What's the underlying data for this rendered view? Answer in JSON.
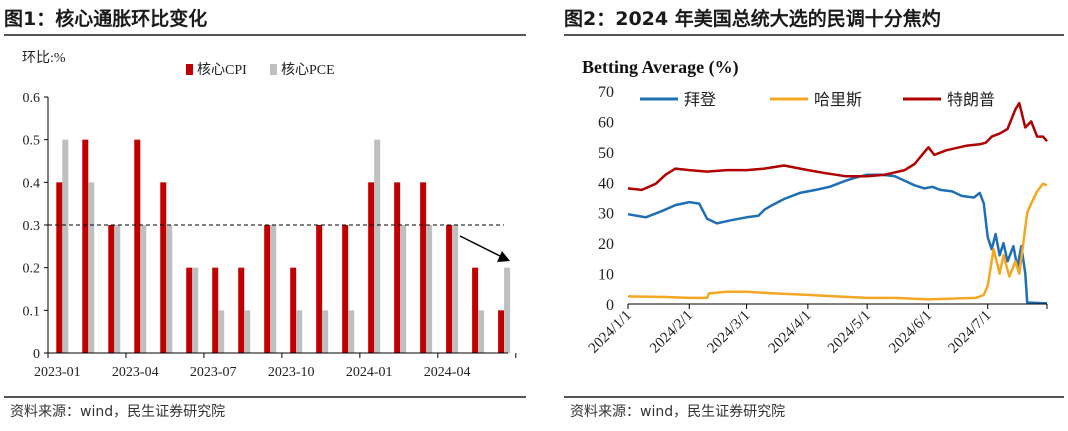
{
  "figure1": {
    "title": "图1：核心通胀环比变化",
    "source": "资料来源：wind，民生证券研究院",
    "chart_data": {
      "type": "bar",
      "ylabel": "环比:%",
      "ylim": [
        0,
        0.6
      ],
      "yticks": [
        0,
        0.1,
        0.2,
        0.3,
        0.4,
        0.5,
        0.6
      ],
      "xtick_labels": [
        "2023-01",
        "2023-04",
        "2023-07",
        "2023-10",
        "2024-01",
        "2024-04"
      ],
      "categories": [
        "2023-01",
        "2023-02",
        "2023-03",
        "2023-04",
        "2023-05",
        "2023-06",
        "2023-07",
        "2023-08",
        "2023-09",
        "2023-10",
        "2023-11",
        "2023-12",
        "2024-01",
        "2024-02",
        "2024-03",
        "2024-04",
        "2024-05",
        "2024-06"
      ],
      "series": [
        {
          "name": "核心CPI",
          "color": "#c00000",
          "values": [
            0.4,
            0.5,
            0.3,
            0.5,
            0.4,
            0.2,
            0.2,
            0.2,
            0.3,
            0.2,
            0.3,
            0.3,
            0.4,
            0.4,
            0.4,
            0.3,
            0.2,
            0.1
          ]
        },
        {
          "name": "核心PCE",
          "color": "#bfbfbf",
          "values": [
            0.5,
            0.4,
            0.3,
            0.3,
            0.3,
            0.2,
            0.1,
            0.1,
            0.3,
            0.1,
            0.1,
            0.1,
            0.5,
            0.3,
            0.3,
            0.3,
            0.1,
            0.2
          ]
        }
      ],
      "reference_line": 0.3,
      "legend": "top-center"
    }
  },
  "figure2": {
    "title": "图2：2024 年美国总统大选的民调十分焦灼",
    "source": "资料来源：wind，民生证券研究院",
    "chart_data": {
      "type": "line",
      "title": "Betting Average (%)",
      "ylim": [
        0,
        70
      ],
      "yticks": [
        0,
        10,
        20,
        30,
        40,
        50,
        60,
        70
      ],
      "x_domain": [
        "2024-01-01",
        "2024-07-31"
      ],
      "xtick_labels": [
        "2024/1/1",
        "2024/2/1",
        "2024/3/1",
        "2024/4/1",
        "2024/5/1",
        "2024/6/1",
        "2024/7/1"
      ],
      "x_ticks": [
        "2024-01-01",
        "2024-02-01",
        "2024-03-01",
        "2024-04-01",
        "2024-05-01",
        "2024-06-01",
        "2024-07-01"
      ],
      "legend": "top",
      "series": [
        {
          "name": "拜登",
          "color": "#1f6fb5",
          "points": [
            [
              "2024-01-01",
              29.5
            ],
            [
              "2024-01-10",
              28.5
            ],
            [
              "2024-01-18",
              30.5
            ],
            [
              "2024-01-25",
              32.5
            ],
            [
              "2024-02-01",
              33.5
            ],
            [
              "2024-02-06",
              33.0
            ],
            [
              "2024-02-10",
              28.0
            ],
            [
              "2024-02-15",
              26.5
            ],
            [
              "2024-02-22",
              27.5
            ],
            [
              "2024-03-01",
              28.5
            ],
            [
              "2024-03-07",
              29.0
            ],
            [
              "2024-03-10",
              31.0
            ],
            [
              "2024-03-14",
              32.5
            ],
            [
              "2024-03-20",
              34.5
            ],
            [
              "2024-03-28",
              36.5
            ],
            [
              "2024-04-05",
              37.5
            ],
            [
              "2024-04-12",
              38.5
            ],
            [
              "2024-04-20",
              40.5
            ],
            [
              "2024-04-25",
              41.5
            ],
            [
              "2024-05-01",
              42.5
            ],
            [
              "2024-05-08",
              42.5
            ],
            [
              "2024-05-15",
              42.0
            ],
            [
              "2024-05-20",
              40.5
            ],
            [
              "2024-05-25",
              39.0
            ],
            [
              "2024-05-30",
              38.0
            ],
            [
              "2024-06-03",
              38.5
            ],
            [
              "2024-06-07",
              37.5
            ],
            [
              "2024-06-13",
              37.0
            ],
            [
              "2024-06-18",
              35.5
            ],
            [
              "2024-06-24",
              35.0
            ],
            [
              "2024-06-27",
              36.5
            ],
            [
              "2024-06-29",
              33.0
            ],
            [
              "2024-07-01",
              22.0
            ],
            [
              "2024-07-03",
              18.0
            ],
            [
              "2024-07-05",
              23.0
            ],
            [
              "2024-07-07",
              16.0
            ],
            [
              "2024-07-09",
              20.0
            ],
            [
              "2024-07-11",
              14.0
            ],
            [
              "2024-07-14",
              19.0
            ],
            [
              "2024-07-16",
              12.0
            ],
            [
              "2024-07-18",
              19.0
            ],
            [
              "2024-07-20",
              10.0
            ],
            [
              "2024-07-21",
              0.5
            ],
            [
              "2024-07-31",
              0.2
            ]
          ]
        },
        {
          "name": "哈里斯",
          "color": "#f5a623",
          "points": [
            [
              "2024-01-01",
              2.5
            ],
            [
              "2024-01-20",
              2.3
            ],
            [
              "2024-02-01",
              2.0
            ],
            [
              "2024-02-10",
              2.0
            ],
            [
              "2024-02-11",
              3.5
            ],
            [
              "2024-02-20",
              4.0
            ],
            [
              "2024-03-01",
              4.0
            ],
            [
              "2024-03-15",
              3.5
            ],
            [
              "2024-04-01",
              3.0
            ],
            [
              "2024-04-15",
              2.5
            ],
            [
              "2024-05-01",
              2.0
            ],
            [
              "2024-05-15",
              2.0
            ],
            [
              "2024-06-01",
              1.5
            ],
            [
              "2024-06-25",
              2.0
            ],
            [
              "2024-06-29",
              3.0
            ],
            [
              "2024-07-01",
              6.0
            ],
            [
              "2024-07-04",
              18.0
            ],
            [
              "2024-07-07",
              10.0
            ],
            [
              "2024-07-09",
              16.0
            ],
            [
              "2024-07-12",
              9.0
            ],
            [
              "2024-07-15",
              14.0
            ],
            [
              "2024-07-17",
              10.0
            ],
            [
              "2024-07-19",
              20.0
            ],
            [
              "2024-07-21",
              30.0
            ],
            [
              "2024-07-23",
              33.0
            ],
            [
              "2024-07-26",
              37.0
            ],
            [
              "2024-07-29",
              39.5
            ],
            [
              "2024-07-31",
              39.0
            ]
          ]
        },
        {
          "name": "特朗普",
          "color": "#b00000",
          "points": [
            [
              "2024-01-01",
              38.0
            ],
            [
              "2024-01-08",
              37.5
            ],
            [
              "2024-01-15",
              39.5
            ],
            [
              "2024-01-20",
              42.5
            ],
            [
              "2024-01-25",
              44.5
            ],
            [
              "2024-02-01",
              44.0
            ],
            [
              "2024-02-10",
              43.5
            ],
            [
              "2024-02-20",
              44.0
            ],
            [
              "2024-03-01",
              44.0
            ],
            [
              "2024-03-10",
              44.5
            ],
            [
              "2024-03-20",
              45.5
            ],
            [
              "2024-04-01",
              44.0
            ],
            [
              "2024-04-10",
              43.0
            ],
            [
              "2024-04-20",
              42.0
            ],
            [
              "2024-05-01",
              42.0
            ],
            [
              "2024-05-10",
              42.5
            ],
            [
              "2024-05-20",
              44.0
            ],
            [
              "2024-05-25",
              46.0
            ],
            [
              "2024-05-30",
              50.0
            ],
            [
              "2024-06-01",
              51.5
            ],
            [
              "2024-06-04",
              49.0
            ],
            [
              "2024-06-10",
              50.5
            ],
            [
              "2024-06-20",
              52.0
            ],
            [
              "2024-06-27",
              52.5
            ],
            [
              "2024-06-30",
              53.0
            ],
            [
              "2024-07-03",
              55.0
            ],
            [
              "2024-07-07",
              56.0
            ],
            [
              "2024-07-11",
              57.5
            ],
            [
              "2024-07-15",
              64.0
            ],
            [
              "2024-07-17",
              66.0
            ],
            [
              "2024-07-20",
              58.0
            ],
            [
              "2024-07-23",
              60.0
            ],
            [
              "2024-07-26",
              55.0
            ],
            [
              "2024-07-29",
              55.0
            ],
            [
              "2024-07-31",
              53.5
            ]
          ]
        }
      ]
    }
  }
}
